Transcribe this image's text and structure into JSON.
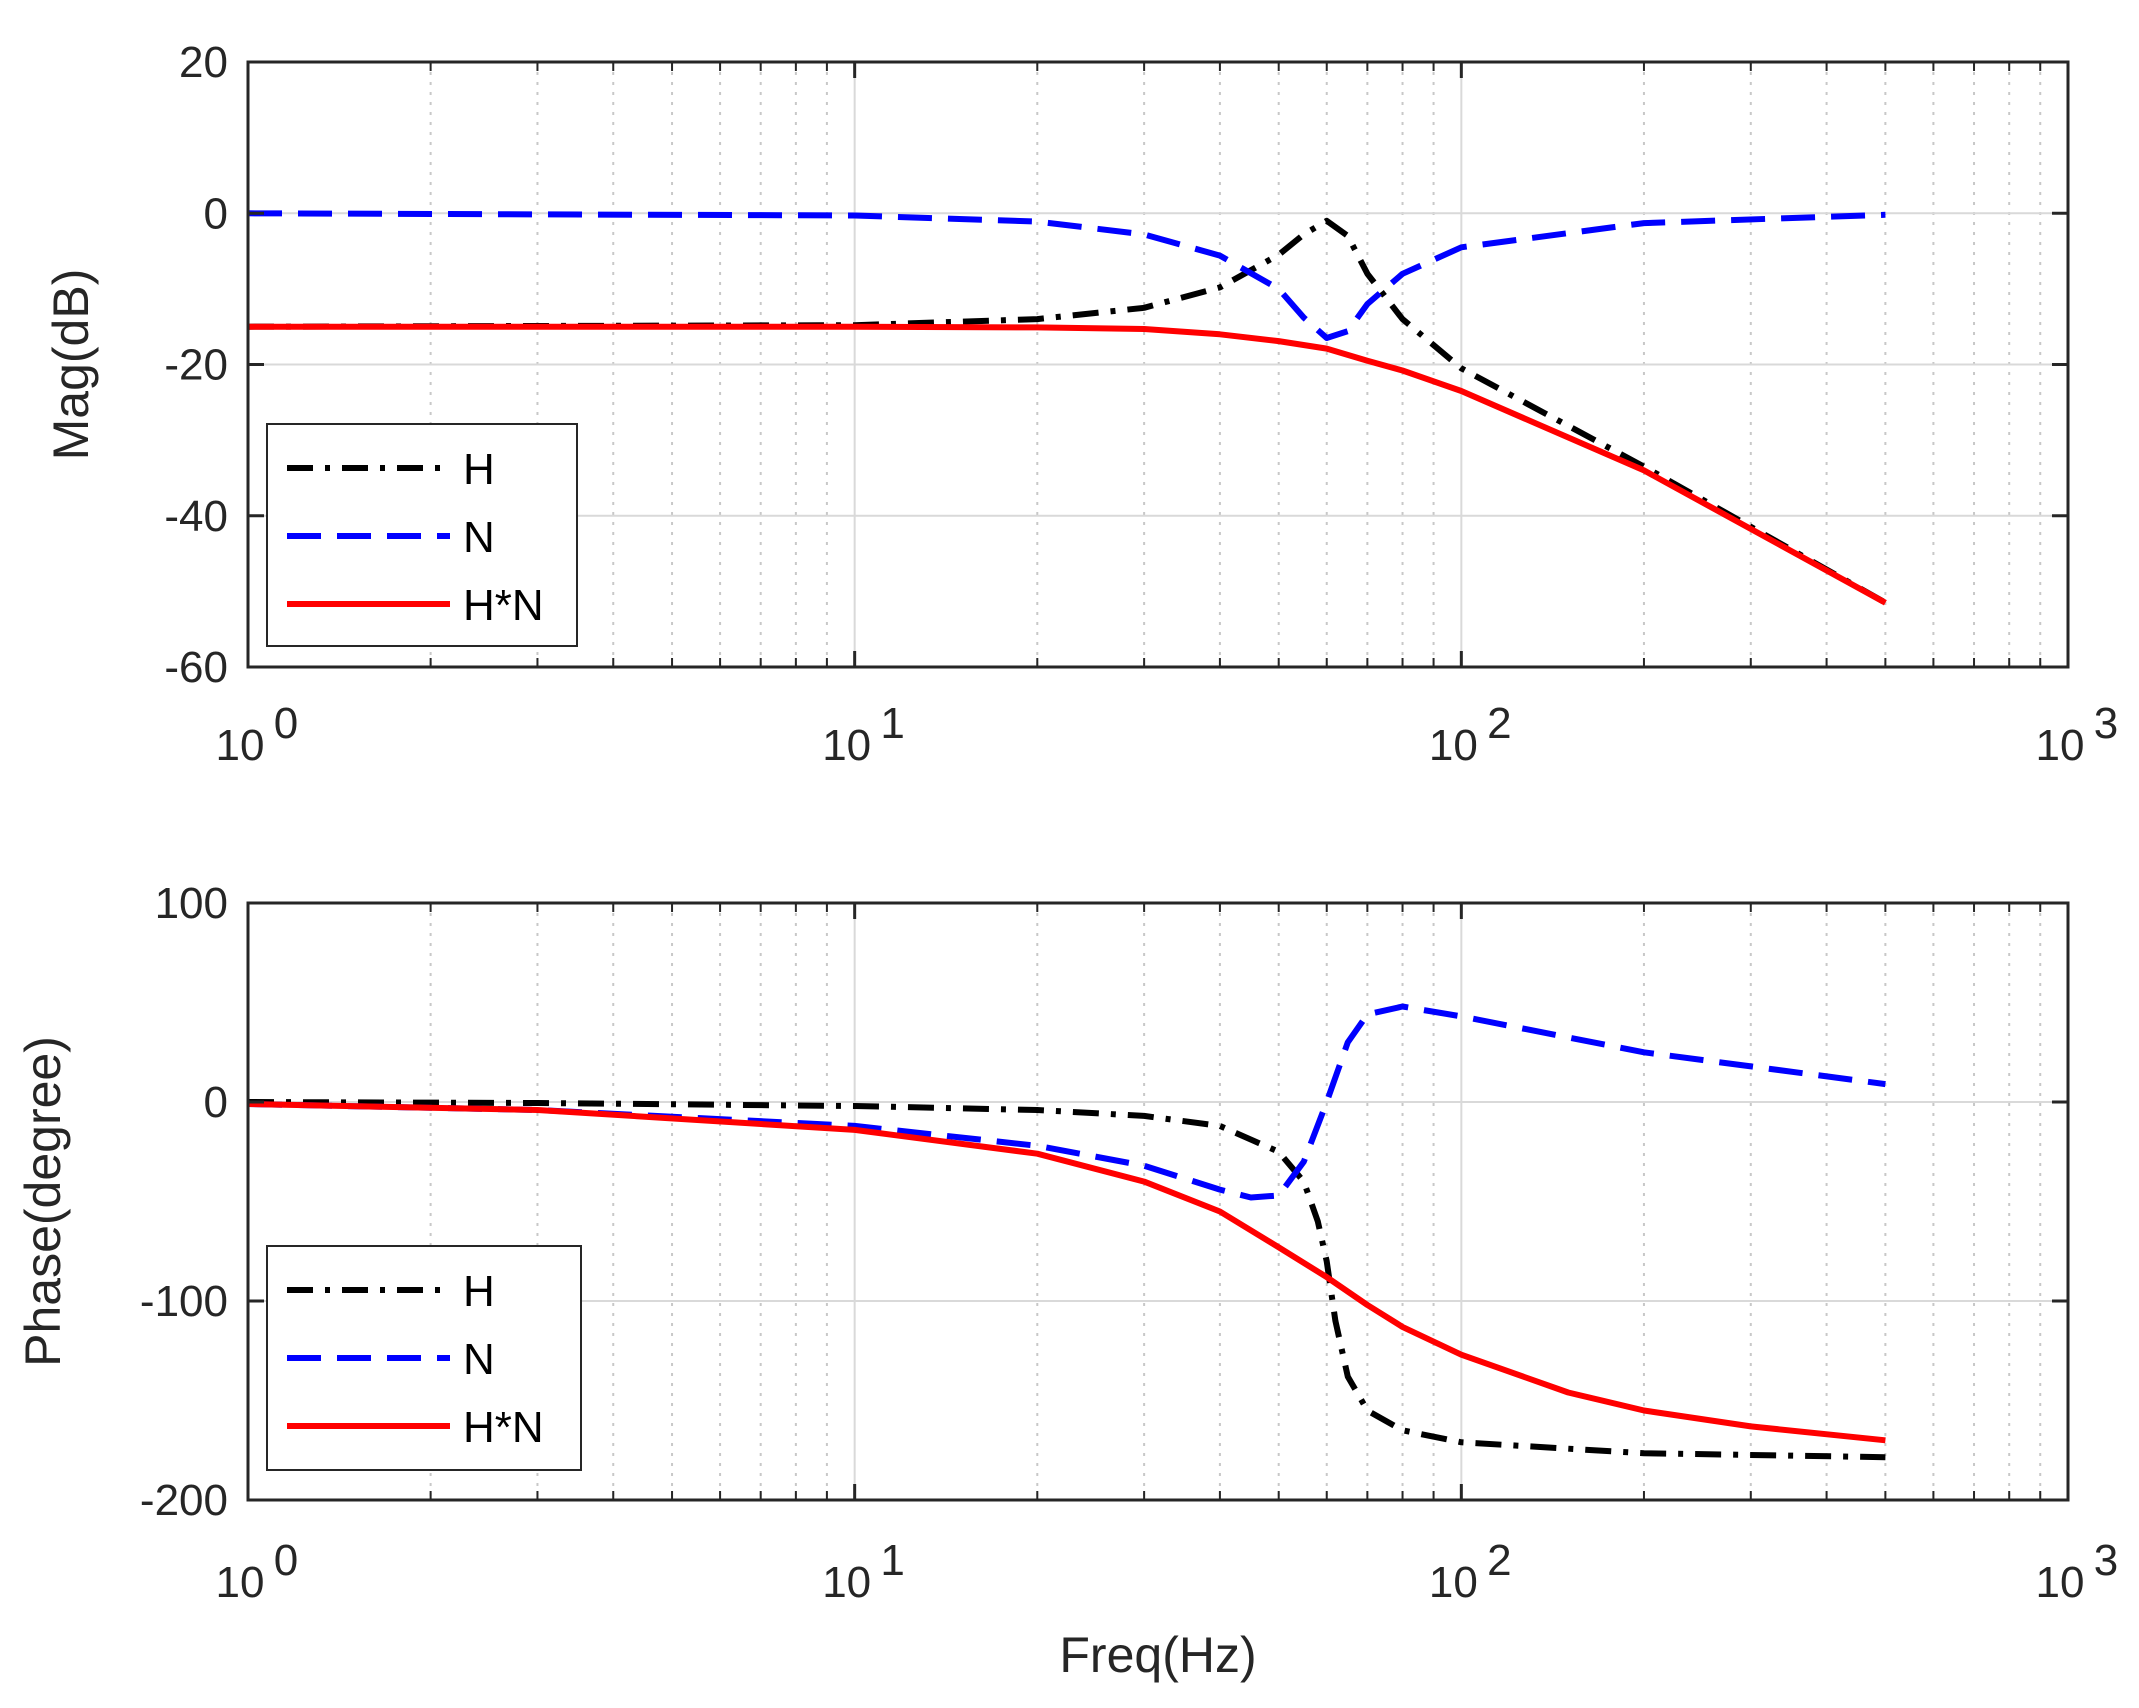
{
  "chart_data": [
    {
      "type": "line",
      "xscale": "log",
      "xlim": [
        1,
        1000
      ],
      "ylim": [
        -60,
        20
      ],
      "ylabel": "Mag(dB)",
      "xlabel": "",
      "yticks": [
        20,
        0,
        -20,
        -40,
        -60
      ],
      "ytick_labels": [
        "20",
        "0",
        "-20",
        "-40",
        "-60"
      ],
      "xticks": [
        {
          "base": "10",
          "exp": "0",
          "value": 1
        },
        {
          "base": "10",
          "exp": "1",
          "value": 10
        },
        {
          "base": "10",
          "exp": "2",
          "value": 100
        },
        {
          "base": "10",
          "exp": "3",
          "value": 1000
        }
      ],
      "grid": true,
      "legend": {
        "position": "bottom-left",
        "entries": [
          "H",
          "N",
          "H*N"
        ]
      },
      "series": [
        {
          "name": "H",
          "style": "dashdot",
          "color": "#000000",
          "x": [
            1,
            10,
            20,
            30,
            40,
            50,
            55,
            60,
            65,
            70,
            80,
            100,
            200,
            500
          ],
          "values": [
            -15,
            -14.8,
            -14,
            -12.5,
            -9.8,
            -5.5,
            -2.8,
            -1,
            -3,
            -8,
            -14,
            -20.5,
            -33.5,
            -51.5
          ]
        },
        {
          "name": "N",
          "style": "dashed",
          "color": "#0000FF",
          "x": [
            1,
            10,
            20,
            30,
            40,
            50,
            55,
            60,
            65,
            70,
            80,
            100,
            200,
            500
          ],
          "values": [
            0,
            -0.3,
            -1.1,
            -2.8,
            -5.6,
            -10,
            -13.8,
            -16.5,
            -15.6,
            -12,
            -8,
            -4.5,
            -1.3,
            -0.2
          ]
        },
        {
          "name": "H*N",
          "style": "solid",
          "color": "#FF0000",
          "x": [
            1,
            10,
            20,
            30,
            40,
            50,
            60,
            70,
            80,
            100,
            200,
            500
          ],
          "values": [
            -15,
            -15,
            -15.1,
            -15.3,
            -16,
            -16.9,
            -17.9,
            -19.5,
            -20.8,
            -23.5,
            -34,
            -51.5
          ]
        }
      ]
    },
    {
      "type": "line",
      "xscale": "log",
      "xlim": [
        1,
        1000
      ],
      "ylim": [
        -200,
        100
      ],
      "ylabel": "Phase(degree)",
      "xlabel": "Freq(Hz)",
      "yticks": [
        100,
        0,
        -100,
        -200
      ],
      "ytick_labels": [
        "100",
        "0",
        "-100",
        "-200"
      ],
      "xticks": [
        {
          "base": "10",
          "exp": "0",
          "value": 1
        },
        {
          "base": "10",
          "exp": "1",
          "value": 10
        },
        {
          "base": "10",
          "exp": "2",
          "value": 100
        },
        {
          "base": "10",
          "exp": "3",
          "value": 1000
        }
      ],
      "grid": true,
      "legend": {
        "position": "bottom-left",
        "entries": [
          "H",
          "N",
          "H*N"
        ]
      },
      "series": [
        {
          "name": "H",
          "style": "dashdot",
          "color": "#000000",
          "x": [
            1,
            3,
            10,
            20,
            30,
            40,
            50,
            55,
            58,
            60,
            62,
            65,
            70,
            80,
            100,
            200,
            500
          ],
          "values": [
            0,
            -0.5,
            -2,
            -4,
            -7,
            -12,
            -25,
            -40,
            -60,
            -80,
            -110,
            -138,
            -155,
            -165,
            -171,
            -176.5,
            -178.5
          ]
        },
        {
          "name": "N",
          "style": "dashed",
          "color": "#0000FF",
          "x": [
            1,
            3,
            10,
            20,
            30,
            40,
            45,
            50,
            55,
            60,
            65,
            70,
            80,
            100,
            200,
            500
          ],
          "values": [
            -1,
            -4,
            -12,
            -22,
            -32,
            -44,
            -48,
            -47,
            -30,
            0,
            30,
            44,
            48,
            43,
            25,
            9
          ]
        },
        {
          "name": "H*N",
          "style": "solid",
          "color": "#FF0000",
          "x": [
            1,
            3,
            10,
            20,
            30,
            40,
            50,
            60,
            70,
            80,
            100,
            150,
            200,
            300,
            500
          ],
          "values": [
            -1,
            -4,
            -14,
            -26,
            -40,
            -55,
            -73,
            -88,
            -102,
            -113,
            -127,
            -146,
            -155,
            -163,
            -170
          ]
        }
      ]
    }
  ]
}
